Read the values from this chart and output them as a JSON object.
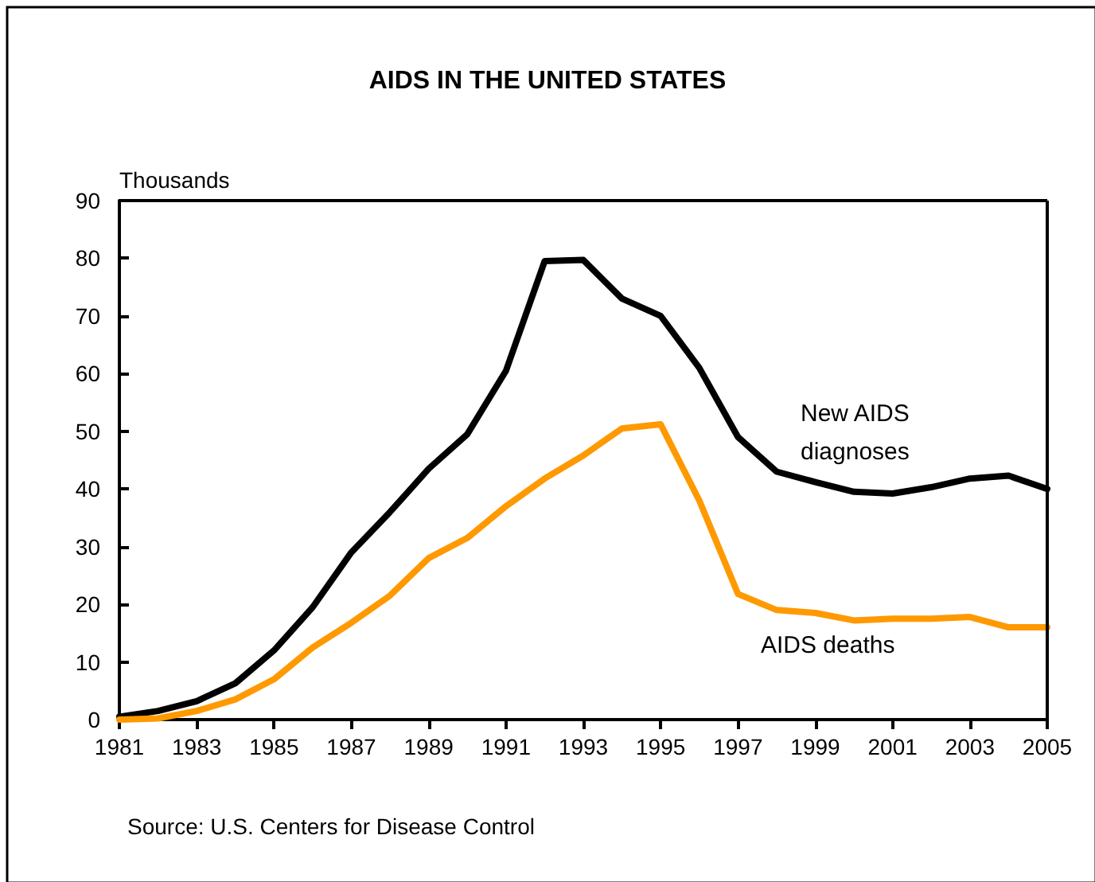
{
  "chart_data": {
    "type": "line",
    "title": "AIDS IN THE UNITED STATES",
    "ylabel": "Thousands",
    "x": [
      1981,
      1982,
      1983,
      1984,
      1985,
      1986,
      1987,
      1988,
      1989,
      1990,
      1991,
      1992,
      1993,
      1994,
      1995,
      1996,
      1997,
      1998,
      1999,
      2000,
      2001,
      2002,
      2003,
      2004,
      2005
    ],
    "series": [
      {
        "name": "New AIDS diagnoses",
        "color": "#000000",
        "values": [
          0.5,
          1.5,
          3.2,
          6.3,
          12,
          19.5,
          29,
          36,
          43.5,
          49.5,
          60.5,
          79.5,
          79.7,
          73,
          70,
          61,
          49,
          43,
          41.2,
          39.5,
          39.2,
          40.3,
          41.8,
          42.3,
          40
        ]
      },
      {
        "name": "AIDS deaths",
        "color": "#ff9900",
        "values": [
          0,
          0.2,
          1.5,
          3.5,
          7,
          12.5,
          16.8,
          21.5,
          28,
          31.5,
          37,
          41.8,
          45.8,
          50.5,
          51.2,
          38,
          21.8,
          19,
          18.5,
          17.2,
          17.5,
          17.5,
          17.8,
          16,
          16
        ]
      }
    ],
    "xlim": [
      1981,
      2005
    ],
    "xticks": [
      1981,
      1983,
      1985,
      1987,
      1989,
      1991,
      1993,
      1995,
      1997,
      1999,
      2001,
      2003,
      2005
    ],
    "ylim": [
      0,
      90
    ],
    "yticks": [
      0,
      10,
      20,
      30,
      40,
      50,
      60,
      70,
      80,
      90
    ],
    "grid": false,
    "legend": false,
    "marker": "none",
    "line_style": "solid",
    "annotations": [
      "Source: U.S. Centers for Disease Control"
    ]
  }
}
